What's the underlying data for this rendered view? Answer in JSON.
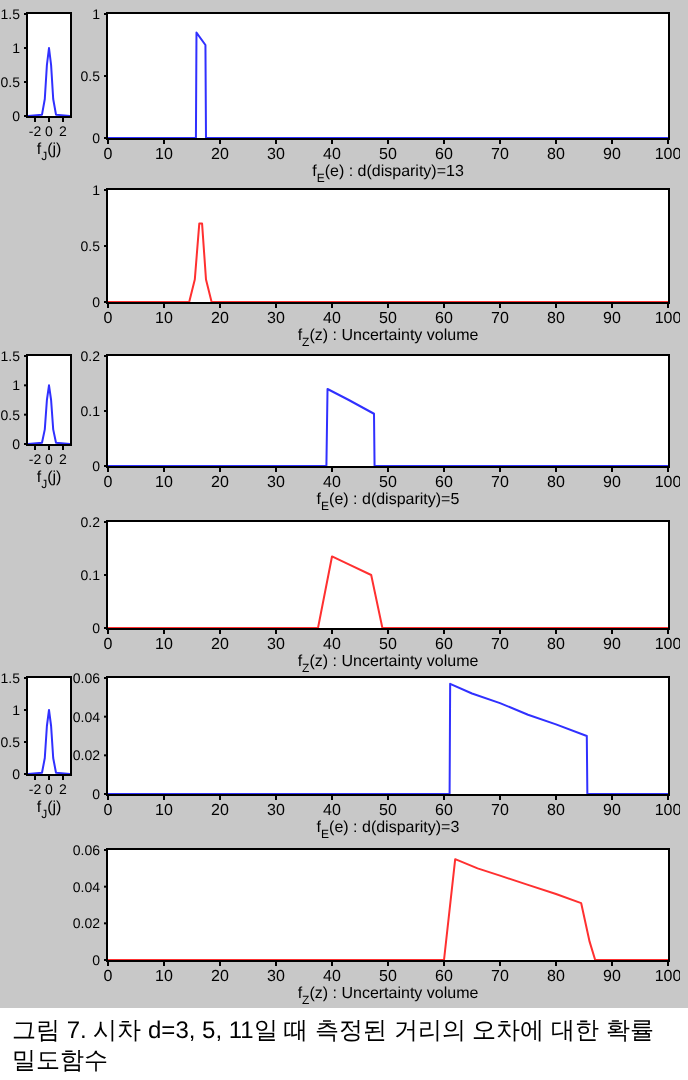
{
  "chart_data": [
    {
      "type": "line",
      "xlabel": "f$_{J}$(j)",
      "xlim": [
        -3,
        3
      ],
      "xticks": [
        -2,
        0,
        2
      ],
      "ylim": [
        0,
        1.5
      ],
      "yticks": [
        0,
        0.5,
        1,
        1.5
      ],
      "marker": "none",
      "x": [
        -3,
        -1,
        -0.6,
        -0.3,
        0,
        0.3,
        0.6,
        1,
        3
      ],
      "series": [
        {
          "color": "#3030ff",
          "values": [
            0,
            0.02,
            0.25,
            0.75,
            1,
            0.75,
            0.25,
            0.02,
            0
          ]
        }
      ]
    },
    {
      "type": "line",
      "xlabel": "f$_{E}$(e) : d(disparity)=13",
      "xlim": [
        0,
        100
      ],
      "xticks": [
        0,
        10,
        20,
        30,
        40,
        50,
        60,
        70,
        80,
        90,
        100
      ],
      "ylim": [
        0,
        1
      ],
      "yticks": [
        0,
        0.5,
        1
      ],
      "marker": "none",
      "x": [
        0,
        15.7,
        15.8,
        17.4,
        17.5,
        100
      ],
      "series": [
        {
          "color": "#3030ff",
          "values": [
            0,
            0,
            0.85,
            0.75,
            0,
            0
          ]
        }
      ]
    },
    {
      "type": "line",
      "xlabel": "f$_{Z}$(z) : Uncertainty volume",
      "xlim": [
        0,
        100
      ],
      "xticks": [
        0,
        10,
        20,
        30,
        40,
        50,
        60,
        70,
        80,
        90,
        100
      ],
      "ylim": [
        0,
        1
      ],
      "yticks": [
        0,
        0.5,
        1
      ],
      "marker": "none",
      "x": [
        0,
        14.5,
        15.5,
        16.3,
        16.8,
        17.5,
        18.5,
        100
      ],
      "series": [
        {
          "color": "#ff3030",
          "values": [
            0,
            0,
            0.2,
            0.7,
            0.7,
            0.2,
            0,
            0
          ]
        }
      ]
    },
    {
      "type": "line",
      "xlabel": "f$_{J}$(j)",
      "xlim": [
        -3,
        3
      ],
      "xticks": [
        -2,
        0,
        2
      ],
      "ylim": [
        0,
        1.5
      ],
      "yticks": [
        0,
        0.5,
        1,
        1.5
      ],
      "marker": "none",
      "x": [
        -3,
        -1,
        -0.6,
        -0.3,
        0,
        0.3,
        0.6,
        1,
        3
      ],
      "series": [
        {
          "color": "#3030ff",
          "values": [
            0,
            0.02,
            0.25,
            0.75,
            1,
            0.75,
            0.25,
            0.02,
            0
          ]
        }
      ]
    },
    {
      "type": "line",
      "xlabel": "f$_{E}$(e) : d(disparity)=5",
      "xlim": [
        0,
        100
      ],
      "xticks": [
        0,
        10,
        20,
        30,
        40,
        50,
        60,
        70,
        80,
        90,
        100
      ],
      "ylim": [
        0,
        0.2
      ],
      "yticks": [
        0,
        0.1,
        0.2
      ],
      "marker": "none",
      "x": [
        0,
        39,
        39.2,
        43,
        47.5,
        47.6,
        100
      ],
      "series": [
        {
          "color": "#3030ff",
          "values": [
            0,
            0,
            0.14,
            0.12,
            0.095,
            0,
            0
          ]
        }
      ]
    },
    {
      "type": "line",
      "xlabel": "f$_{Z}$(z) : Uncertainty volume",
      "xlim": [
        0,
        100
      ],
      "xticks": [
        0,
        10,
        20,
        30,
        40,
        50,
        60,
        70,
        80,
        90,
        100
      ],
      "ylim": [
        0,
        0.2
      ],
      "yticks": [
        0,
        0.1,
        0.2
      ],
      "marker": "none",
      "x": [
        0,
        37.5,
        40,
        43,
        47,
        49,
        100
      ],
      "series": [
        {
          "color": "#ff3030",
          "values": [
            0,
            0,
            0.135,
            0.12,
            0.1,
            0,
            0
          ]
        }
      ]
    },
    {
      "type": "line",
      "xlabel": "f$_{J}$(j)",
      "xlim": [
        -3,
        3
      ],
      "xticks": [
        -2,
        0,
        2
      ],
      "ylim": [
        0,
        1.5
      ],
      "yticks": [
        0,
        0.5,
        1,
        1.5
      ],
      "marker": "none",
      "x": [
        -3,
        -1,
        -0.6,
        -0.3,
        0,
        0.3,
        0.6,
        1,
        3
      ],
      "series": [
        {
          "color": "#3030ff",
          "values": [
            0,
            0.02,
            0.25,
            0.75,
            1,
            0.75,
            0.25,
            0.02,
            0
          ]
        }
      ]
    },
    {
      "type": "line",
      "xlabel": "f$_{E}$(e) : d(disparity)=3",
      "xlim": [
        0,
        100
      ],
      "xticks": [
        0,
        10,
        20,
        30,
        40,
        50,
        60,
        70,
        80,
        90,
        100
      ],
      "ylim": [
        0,
        0.06
      ],
      "yticks": [
        0,
        0.02,
        0.04,
        0.06
      ],
      "marker": "none",
      "x": [
        0,
        61,
        61.1,
        65,
        70,
        75,
        80,
        85.5,
        85.6,
        100
      ],
      "series": [
        {
          "color": "#3030ff",
          "values": [
            0,
            0,
            0.057,
            0.052,
            0.047,
            0.041,
            0.036,
            0.03,
            0,
            0
          ]
        }
      ]
    },
    {
      "type": "line",
      "xlabel": "f$_{Z}$(z) : Uncertainty volume",
      "xlim": [
        0,
        100
      ],
      "xticks": [
        0,
        10,
        20,
        30,
        40,
        50,
        60,
        70,
        80,
        90,
        100
      ],
      "ylim": [
        0,
        0.06
      ],
      "yticks": [
        0,
        0.02,
        0.04,
        0.06
      ],
      "marker": "none",
      "x": [
        0,
        60,
        62,
        66,
        70,
        75,
        80,
        84.5,
        86,
        87,
        100
      ],
      "series": [
        {
          "color": "#ff3030",
          "values": [
            0,
            0,
            0.055,
            0.05,
            0.046,
            0.041,
            0.036,
            0.031,
            0.01,
            0,
            0
          ]
        }
      ],
      "annotations": [
        "그림 7. 시차 d=3, 5, 11일 때 측정된 거리의 오차에 대한 확률밀도함수"
      ]
    }
  ]
}
